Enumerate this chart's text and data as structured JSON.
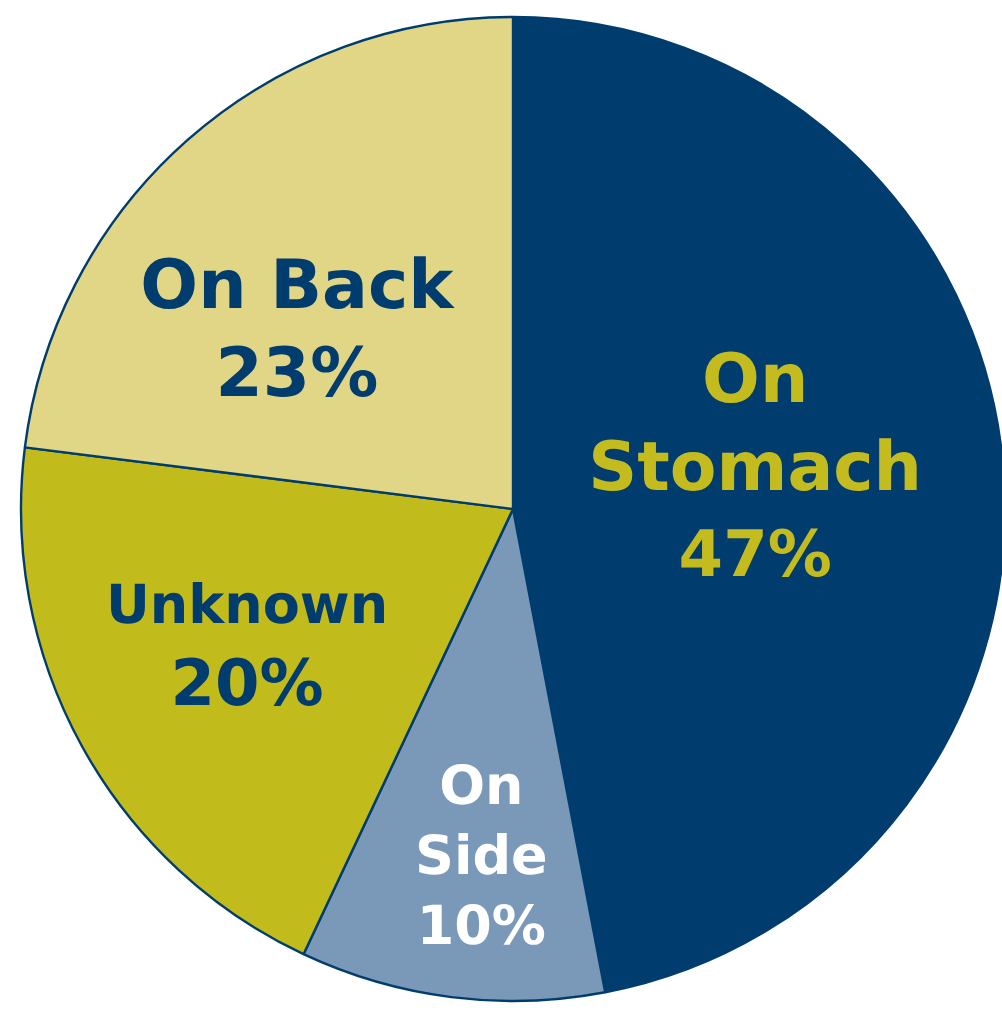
{
  "chart_data": {
    "type": "pie",
    "categories": [
      "On Stomach",
      "On Side",
      "Unknown",
      "On Back"
    ],
    "values": [
      47,
      10,
      20,
      23
    ],
    "colors": [
      "#003d6e",
      "#7a98b8",
      "#c2bb1c",
      "#e0d686"
    ],
    "value_labels": [
      "47%",
      "10%",
      "20%",
      "23%"
    ]
  }
}
